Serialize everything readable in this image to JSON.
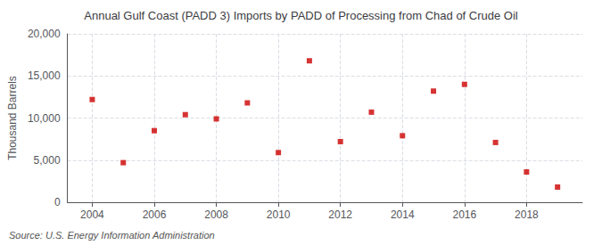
{
  "chart_data": {
    "type": "scatter",
    "title": "Annual Gulf Coast (PADD 3) Imports by PADD of Processing from Chad of Crude Oil",
    "ylabel": "Thousand Barrels",
    "source": "Source: U.S. Energy Information Administration",
    "x": [
      2004,
      2005,
      2006,
      2007,
      2008,
      2009,
      2010,
      2011,
      2012,
      2013,
      2014,
      2015,
      2016,
      2017,
      2018,
      2019
    ],
    "values": [
      12200,
      4700,
      8500,
      10400,
      9900,
      11800,
      5900,
      16800,
      7200,
      10700,
      7900,
      13200,
      14000,
      7100,
      3600,
      1800
    ],
    "color": "#cc0000",
    "marker": "square",
    "xlim": [
      2003.2,
      2019.8
    ],
    "xticks": [
      2004,
      2006,
      2008,
      2010,
      2012,
      2014,
      2016,
      2018
    ],
    "ylim": [
      0,
      20000
    ],
    "yticks": [
      0,
      {
        "value": 5000,
        "label": "5,000"
      },
      {
        "value": 10000,
        "label": "10,000"
      },
      {
        "value": 15000,
        "label": "15,000"
      },
      {
        "value": 20000,
        "label": "20,000"
      }
    ],
    "grid": true
  }
}
